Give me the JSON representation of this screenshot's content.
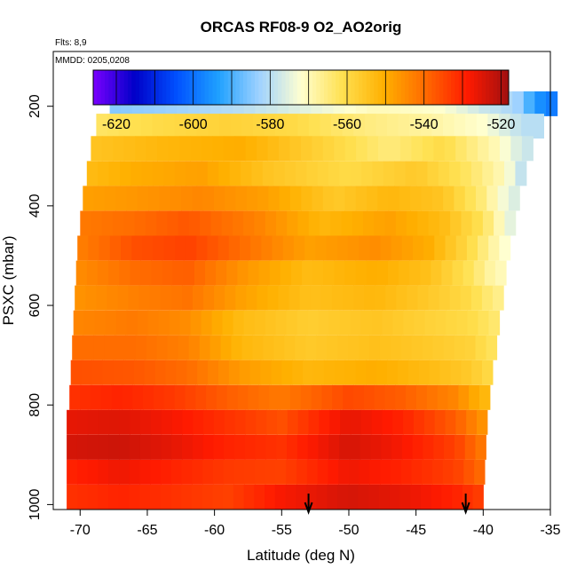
{
  "chart_data": {
    "type": "heatmap",
    "title": "ORCAS RF08-9 O2_AO2orig",
    "flights_note": "Flts: 8,9",
    "dates_note": "MMDD: 0205,0208",
    "xlabel": "Latitude (deg N)",
    "ylabel": "PSXC (mbar)",
    "xlim": [
      -72,
      -35
    ],
    "ylim": [
      1010,
      90
    ],
    "y_inverted": true,
    "x_ticks": [
      -70,
      -65,
      -60,
      -55,
      -50,
      -45,
      -40,
      -35
    ],
    "y_ticks": [
      200,
      400,
      600,
      800,
      1000
    ],
    "colorbar": {
      "min": -626,
      "max": -518,
      "tick_values": [
        -620,
        -600,
        -580,
        -560,
        -540,
        -520
      ],
      "colors": [
        "#7a00ff",
        "#0000c8",
        "#0050ff",
        "#1ea0ff",
        "#9fd2ff",
        "#ffffd0",
        "#ffe050",
        "#ffb000",
        "#ff6a00",
        "#ff1a00",
        "#a01010"
      ]
    },
    "arrows_lat": [
      -53,
      -41.3
    ],
    "arrows_label": "",
    "layers": [
      {
        "p": 195,
        "lat_min": -67.8,
        "lat_max": -34.5,
        "lats": [
          -67.8,
          -63,
          -58,
          -53,
          -48,
          -43,
          -40,
          -37.5,
          -36,
          -34.5
        ],
        "vals": [
          -585,
          -583,
          -580,
          -575,
          -570,
          -572,
          -578,
          -582,
          -595,
          -600
        ]
      },
      {
        "p": 240,
        "lat_min": -68.8,
        "lat_max": -35.5,
        "lats": [
          -68.8,
          -64,
          -59,
          -54,
          -49,
          -44,
          -40,
          -37
        ],
        "vals": [
          -563,
          -560,
          -558,
          -560,
          -565,
          -568,
          -572,
          -580
        ]
      },
      {
        "p": 285,
        "lat_min": -69.2,
        "lat_max": -36.3,
        "lats": [
          -69.2,
          -64,
          -58,
          -52,
          -47,
          -43,
          -39,
          -37
        ],
        "vals": [
          -555,
          -552,
          -550,
          -558,
          -565,
          -560,
          -570,
          -578
        ]
      },
      {
        "p": 335,
        "lat_min": -69.5,
        "lat_max": -36.8,
        "lats": [
          -69.5,
          -66,
          -61,
          -56,
          -50,
          -45,
          -41,
          -38.5,
          -37
        ],
        "vals": [
          -553,
          -550,
          -548,
          -555,
          -560,
          -556,
          -563,
          -570,
          -580
        ]
      },
      {
        "p": 385,
        "lat_min": -69.8,
        "lat_max": -37.3,
        "lats": [
          -69.8,
          -65,
          -61,
          -56,
          -51,
          -47,
          -43,
          -40,
          -38
        ],
        "vals": [
          -548,
          -546,
          -544,
          -548,
          -556,
          -552,
          -555,
          -565,
          -576
        ]
      },
      {
        "p": 435,
        "lat_min": -70.0,
        "lat_max": -37.6,
        "lats": [
          -70,
          -66,
          -62,
          -57,
          -52,
          -47,
          -43,
          -40,
          -38
        ],
        "vals": [
          -542,
          -540,
          -537,
          -543,
          -552,
          -548,
          -553,
          -562,
          -575
        ]
      },
      {
        "p": 485,
        "lat_min": -70.2,
        "lat_max": -38.0,
        "lats": [
          -70.2,
          -66,
          -62,
          -58,
          -53,
          -48,
          -44,
          -41,
          -38.5
        ],
        "vals": [
          -543,
          -536,
          -534,
          -540,
          -548,
          -545,
          -550,
          -560,
          -572
        ]
      },
      {
        "p": 535,
        "lat_min": -70.3,
        "lat_max": -38.3,
        "lats": [
          -70.3,
          -66,
          -62,
          -58,
          -53,
          -48,
          -44,
          -41,
          -39
        ],
        "vals": [
          -545,
          -540,
          -538,
          -546,
          -553,
          -550,
          -554,
          -562,
          -570
        ]
      },
      {
        "p": 585,
        "lat_min": -70.4,
        "lat_max": -38.5,
        "lats": [
          -70.4,
          -66,
          -62,
          -58,
          -53,
          -48,
          -44,
          -41,
          -39
        ],
        "vals": [
          -546,
          -543,
          -541,
          -548,
          -554,
          -552,
          -556,
          -560,
          -566
        ]
      },
      {
        "p": 635,
        "lat_min": -70.5,
        "lat_max": -38.8,
        "lats": [
          -70.5,
          -66,
          -62,
          -58,
          -53,
          -48,
          -44,
          -41,
          -39
        ],
        "vals": [
          -544,
          -542,
          -545,
          -553,
          -557,
          -555,
          -558,
          -560,
          -564
        ]
      },
      {
        "p": 685,
        "lat_min": -70.6,
        "lat_max": -39.0,
        "lats": [
          -70.6,
          -66,
          -62,
          -58,
          -53,
          -48,
          -44,
          -41,
          -39.5
        ],
        "vals": [
          -540,
          -540,
          -543,
          -552,
          -556,
          -554,
          -556,
          -558,
          -562
        ]
      },
      {
        "p": 735,
        "lat_min": -70.7,
        "lat_max": -39.3,
        "lats": [
          -70.7,
          -66,
          -62,
          -58,
          -53,
          -48,
          -44,
          -41,
          -39.5
        ],
        "vals": [
          -536,
          -537,
          -540,
          -547,
          -552,
          -550,
          -553,
          -556,
          -560
        ]
      },
      {
        "p": 785,
        "lat_min": -70.8,
        "lat_max": -39.5,
        "lats": [
          -70.8,
          -67,
          -63,
          -59,
          -55,
          -50,
          -46,
          -42,
          -40
        ],
        "vals": [
          -532,
          -530,
          -533,
          -538,
          -542,
          -535,
          -538,
          -544,
          -552
        ]
      },
      {
        "p": 835,
        "lat_min": -71.0,
        "lat_max": -39.7,
        "lats": [
          -71,
          -67,
          -63,
          -59,
          -55,
          -50,
          -46,
          -42,
          -40
        ],
        "vals": [
          -526,
          -525,
          -528,
          -532,
          -536,
          -526,
          -530,
          -538,
          -546
        ]
      },
      {
        "p": 885,
        "lat_min": -71.0,
        "lat_max": -39.8,
        "lats": [
          -71,
          -67,
          -63,
          -59,
          -55,
          -50,
          -46,
          -42,
          -40
        ],
        "vals": [
          -524,
          -523,
          -526,
          -530,
          -532,
          -524,
          -528,
          -534,
          -542
        ]
      },
      {
        "p": 935,
        "lat_min": -71.0,
        "lat_max": -39.9,
        "lats": [
          -71,
          -67,
          -63,
          -59,
          -55,
          -50,
          -46,
          -42,
          -40
        ],
        "vals": [
          -530,
          -527,
          -530,
          -533,
          -534,
          -527,
          -530,
          -534,
          -540
        ]
      },
      {
        "p": 985,
        "lat_min": -71.0,
        "lat_max": -40.0,
        "lats": [
          -71,
          -67,
          -63,
          -59,
          -55,
          -50,
          -46,
          -42,
          -40
        ],
        "vals": [
          -532,
          -530,
          -532,
          -534,
          -528,
          -524,
          -526,
          -530,
          -534
        ]
      }
    ]
  }
}
